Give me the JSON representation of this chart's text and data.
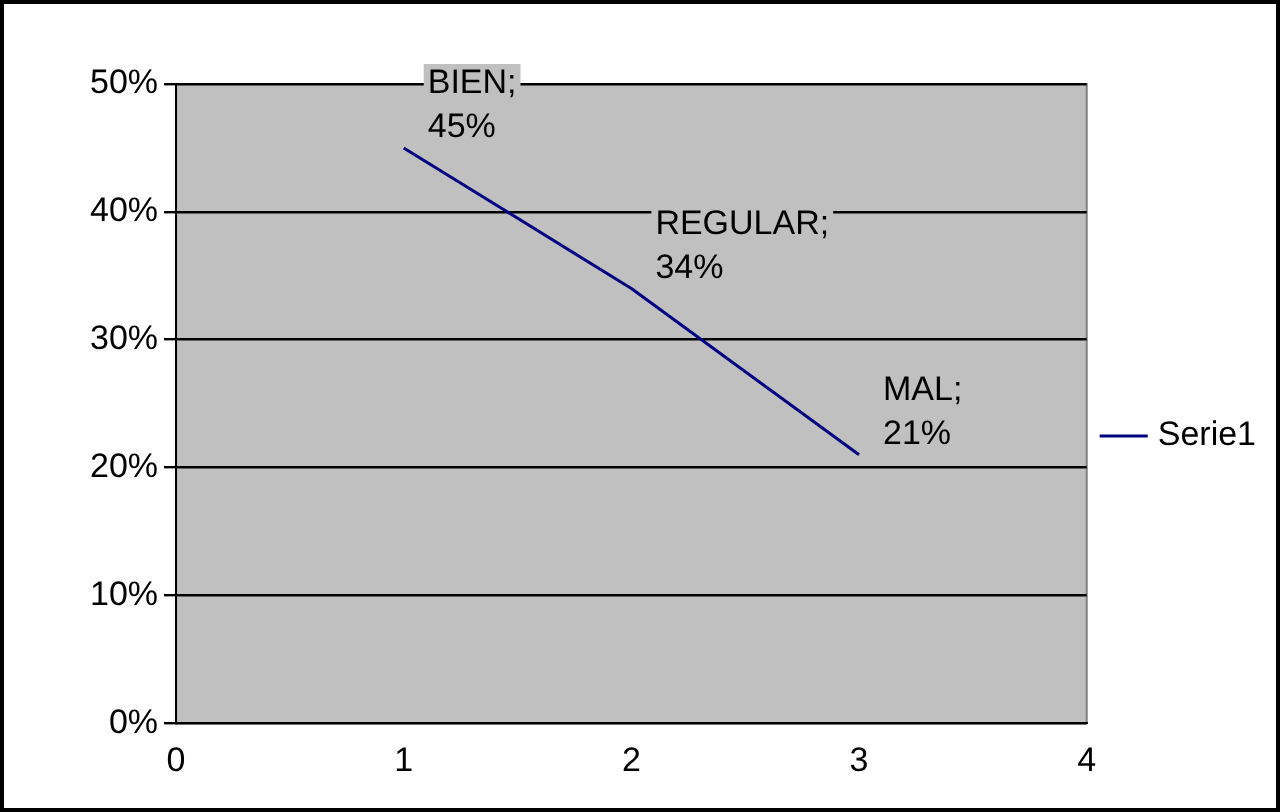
{
  "chart_data": {
    "type": "line",
    "x": [
      1,
      2,
      3
    ],
    "series": [
      {
        "name": "Serie1",
        "color": "#000080",
        "values": [
          45,
          34,
          21
        ],
        "value_labels": [
          "BIEN; 45%",
          "REGULAR; 34%",
          "MAL; 21%"
        ]
      }
    ],
    "xlim": [
      0,
      4
    ],
    "xticks": [
      0,
      1,
      2,
      3,
      4
    ],
    "ylim": [
      0,
      50
    ],
    "yticks": [
      {
        "value": 0,
        "label": "0%"
      },
      {
        "value": 10,
        "label": "10%"
      },
      {
        "value": 20,
        "label": "20%"
      },
      {
        "value": 30,
        "label": "30%"
      },
      {
        "value": 40,
        "label": "40%"
      },
      {
        "value": 50,
        "label": "50%"
      }
    ],
    "grid": "y",
    "legend": "right",
    "marker": "none",
    "line_style": "solid"
  }
}
